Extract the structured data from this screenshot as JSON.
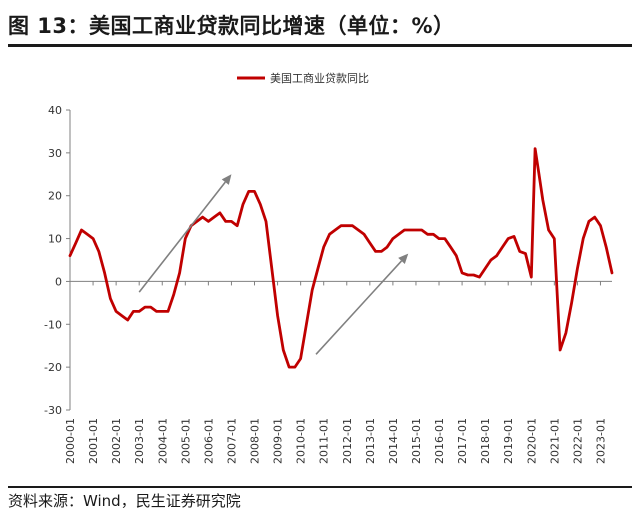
{
  "header": {
    "title": "图 13：美国工商业贷款同比增速（单位：%）"
  },
  "footer": {
    "source": "资料来源：Wind，民生证券研究院"
  },
  "colors": {
    "series": "#c00000",
    "arrow": "#808080",
    "axis": "#808080",
    "text": "#333333"
  },
  "chart_data": {
    "type": "line",
    "title": "",
    "xlabel": "",
    "ylabel": "",
    "ylim": [
      -30,
      40
    ],
    "xlim": [
      "2000-01",
      "2023-07"
    ],
    "yticks": [
      "40",
      "30",
      "20",
      "10",
      "0",
      "-10",
      "-20",
      "-30"
    ],
    "xticks": [
      "2000-01",
      "2001-01",
      "2002-01",
      "2003-01",
      "2004-01",
      "2005-01",
      "2006-01",
      "2007-01",
      "2008-01",
      "2009-01",
      "2010-01",
      "2011-01",
      "2012-01",
      "2013-01",
      "2014-01",
      "2015-01",
      "2016-01",
      "2017-01",
      "2018-01",
      "2019-01",
      "2020-01",
      "2021-01",
      "2022-01",
      "2023-01"
    ],
    "grid": false,
    "legend": "top-center",
    "series": [
      {
        "name": "美国工商业贷款同比",
        "x": [
          "2000-01",
          "2000-04",
          "2000-07",
          "2000-10",
          "2001-01",
          "2001-04",
          "2001-07",
          "2001-10",
          "2002-01",
          "2002-04",
          "2002-07",
          "2002-10",
          "2003-01",
          "2003-04",
          "2003-07",
          "2003-10",
          "2004-01",
          "2004-04",
          "2004-07",
          "2004-10",
          "2005-01",
          "2005-04",
          "2005-07",
          "2005-10",
          "2006-01",
          "2006-04",
          "2006-07",
          "2006-10",
          "2007-01",
          "2007-04",
          "2007-07",
          "2007-10",
          "2008-01",
          "2008-04",
          "2008-07",
          "2008-10",
          "2009-01",
          "2009-04",
          "2009-07",
          "2009-10",
          "2010-01",
          "2010-04",
          "2010-07",
          "2010-10",
          "2011-01",
          "2011-04",
          "2011-07",
          "2011-10",
          "2012-01",
          "2012-04",
          "2012-07",
          "2012-10",
          "2013-01",
          "2013-04",
          "2013-07",
          "2013-10",
          "2014-01",
          "2014-04",
          "2014-07",
          "2014-10",
          "2015-01",
          "2015-04",
          "2015-07",
          "2015-10",
          "2016-01",
          "2016-04",
          "2016-07",
          "2016-10",
          "2017-01",
          "2017-04",
          "2017-07",
          "2017-10",
          "2018-01",
          "2018-04",
          "2018-07",
          "2018-10",
          "2019-01",
          "2019-04",
          "2019-07",
          "2019-10",
          "2020-01",
          "2020-03",
          "2020-05",
          "2020-07",
          "2020-10",
          "2021-01",
          "2021-04",
          "2021-07",
          "2021-10",
          "2022-01",
          "2022-04",
          "2022-07",
          "2022-10",
          "2023-01",
          "2023-04",
          "2023-07"
        ],
        "values": [
          6,
          9,
          12,
          11,
          10,
          7,
          2,
          -4,
          -7,
          -8,
          -9,
          -7,
          -7,
          -6,
          -6,
          -7,
          -7,
          -7,
          -3,
          2,
          10,
          13,
          14,
          15,
          14,
          15,
          16,
          14,
          14,
          13,
          18,
          21,
          21,
          18,
          14,
          3,
          -8,
          -16,
          -20,
          -20,
          -18,
          -10,
          -2,
          3,
          8,
          11,
          12,
          13,
          13,
          13,
          12,
          11,
          9,
          7,
          7,
          8,
          10,
          11,
          12,
          12,
          12,
          12,
          11,
          11,
          10,
          10,
          8,
          6,
          2,
          1.5,
          1.5,
          1,
          3,
          5,
          6,
          8,
          10,
          10.5,
          7,
          6.5,
          1,
          31,
          25,
          19,
          12,
          10,
          -16,
          -12,
          -5,
          3,
          10,
          14,
          15,
          13,
          8,
          2
        ]
      }
    ],
    "annotations": [
      {
        "type": "arrow",
        "from": [
          "2003-01",
          -2.5
        ],
        "to": [
          "2007-01",
          25
        ]
      },
      {
        "type": "arrow",
        "from": [
          "2010-09",
          -17
        ],
        "to": [
          "2014-09",
          6.5
        ]
      }
    ]
  }
}
